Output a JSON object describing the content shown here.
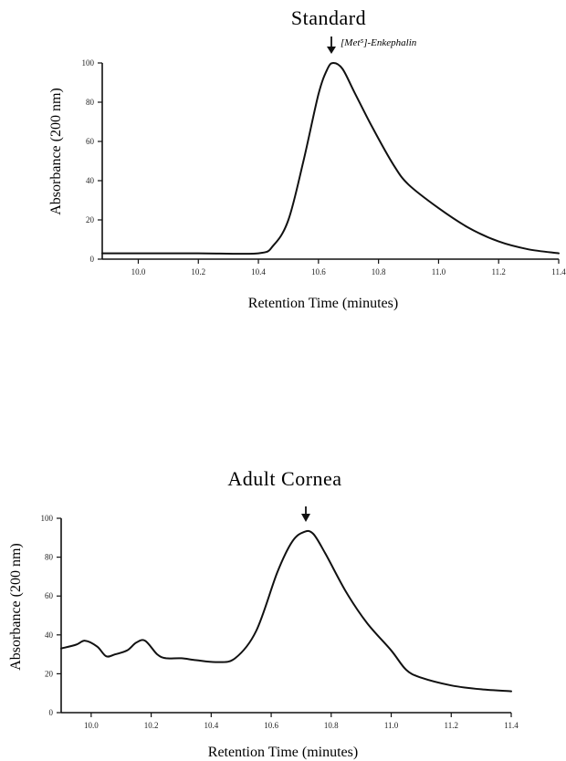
{
  "chart_data": [
    {
      "type": "line",
      "title": "Standard",
      "xlabel": "Retention Time (minutes)",
      "ylabel": "Absorbance (200 nm)",
      "xlim": [
        9.88,
        11.4
      ],
      "ylim": [
        0,
        100
      ],
      "xticks": [
        "10.0",
        "10.2",
        "10.4",
        "10.6",
        "10.8",
        "11.0",
        "11.2",
        "11.4"
      ],
      "yticks": [
        "0",
        "20",
        "40",
        "60",
        "80",
        "100"
      ],
      "annotation": {
        "text": "[Met⁵]-Enkephalin",
        "x": 10.65,
        "y": 100
      },
      "series": [
        {
          "x": [
            9.88,
            10.0,
            10.2,
            10.4,
            10.45,
            10.5,
            10.55,
            10.6,
            10.63,
            10.65,
            10.68,
            10.72,
            10.78,
            10.85,
            10.9,
            11.0,
            11.1,
            11.2,
            11.3,
            11.4
          ],
          "y": [
            3,
            3,
            3,
            3,
            7,
            20,
            50,
            84,
            97,
            100,
            97,
            85,
            67,
            48,
            38,
            26,
            16,
            9,
            5,
            3
          ]
        }
      ]
    },
    {
      "type": "line",
      "title": "Adult Cornea",
      "xlabel": "Retention Time (minutes)",
      "ylabel": "Absorbance (200 nm)",
      "xlim": [
        9.9,
        11.4
      ],
      "ylim": [
        0,
        100
      ],
      "xticks": [
        "10.0",
        "10.2",
        "10.4",
        "10.6",
        "10.8",
        "11.0",
        "11.2",
        "11.4"
      ],
      "yticks": [
        "0",
        "20",
        "40",
        "60",
        "80",
        "100"
      ],
      "annotation": {
        "text": "",
        "x": 10.71,
        "y": 93
      },
      "series": [
        {
          "x": [
            9.9,
            9.95,
            9.98,
            10.02,
            10.05,
            10.08,
            10.12,
            10.15,
            10.18,
            10.22,
            10.25,
            10.3,
            10.35,
            10.42,
            10.48,
            10.55,
            10.62,
            10.67,
            10.71,
            10.74,
            10.78,
            10.85,
            10.92,
            11.0,
            11.05,
            11.1,
            11.2,
            11.3,
            11.4
          ],
          "y": [
            33,
            35,
            37,
            34,
            29,
            30,
            32,
            36,
            37,
            30,
            28,
            28,
            27,
            26,
            28,
            42,
            72,
            88,
            93,
            92,
            82,
            62,
            46,
            32,
            22,
            18,
            14,
            12,
            11
          ]
        }
      ]
    }
  ]
}
